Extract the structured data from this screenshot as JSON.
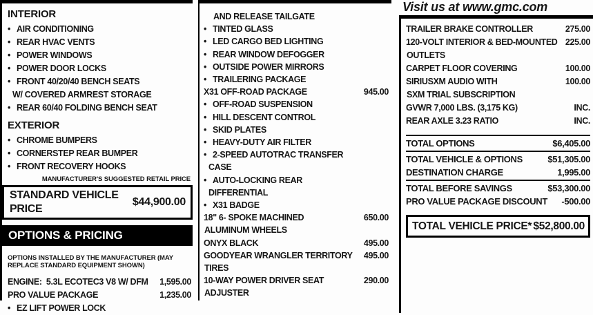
{
  "header": {
    "tagline": "Visit us at www.gmc.com"
  },
  "left": {
    "sections": [
      {
        "title": "INTERIOR",
        "items": [
          {
            "bullet": true,
            "lines": [
              "AIR CONDITIONING"
            ]
          },
          {
            "bullet": true,
            "lines": [
              "REAR HVAC VENTS"
            ]
          },
          {
            "bullet": true,
            "lines": [
              "POWER WINDOWS"
            ]
          },
          {
            "bullet": true,
            "lines": [
              "POWER DOOR LOCKS"
            ]
          },
          {
            "bullet": true,
            "lines": [
              "FRONT 40/20/40 BENCH SEATS",
              "W/ COVERED ARMREST STORAGE"
            ]
          },
          {
            "bullet": true,
            "lines": [
              "REAR 60/40 FOLDING BENCH SEAT"
            ]
          }
        ]
      },
      {
        "title": "EXTERIOR",
        "items": [
          {
            "bullet": true,
            "lines": [
              "CHROME BUMPERS"
            ]
          },
          {
            "bullet": true,
            "lines": [
              "CORNERSTEP REAR BUMPER"
            ]
          },
          {
            "bullet": true,
            "lines": [
              "FRONT RECOVERY HOOKS"
            ]
          }
        ]
      }
    ],
    "msrp_note": "MANUFACTURER'S SUGGESTED RETAIL PRICE",
    "standard_price_label": "STANDARD VEHICLE PRICE",
    "standard_price_value": "$44,900.00",
    "options_banner": "OPTIONS & PRICING",
    "options_note": "OPTIONS INSTALLED BY THE MANUFACTURER (MAY REPLACE STANDARD EQUIPMENT SHOWN)",
    "options": [
      {
        "lines": [
          "ENGINE:  5.3L ECOTEC3 V8 W/ DFM"
        ],
        "price": "1,595.00"
      },
      {
        "lines": [
          "PRO VALUE PACKAGE"
        ],
        "price": "1,235.00"
      },
      {
        "bullet": true,
        "lines": [
          "EZ LIFT POWER LOCK"
        ]
      }
    ]
  },
  "middle": {
    "rows": [
      {
        "indent": true,
        "lines": [
          "AND RELEASE TAILGATE"
        ]
      },
      {
        "bullet": true,
        "lines": [
          "TINTED GLASS"
        ]
      },
      {
        "bullet": true,
        "lines": [
          "LED CARGO BED LIGHTING"
        ]
      },
      {
        "bullet": true,
        "lines": [
          "REAR WINDOW DEFOGGER"
        ]
      },
      {
        "bullet": true,
        "lines": [
          "OUTSIDE POWER MIRRORS"
        ]
      },
      {
        "bullet": true,
        "lines": [
          "TRAILERING PACKAGE"
        ]
      },
      {
        "lines": [
          "X31 OFF-ROAD PACKAGE"
        ],
        "price": "945.00"
      },
      {
        "bullet": true,
        "lines": [
          "OFF-ROAD SUSPENSION"
        ]
      },
      {
        "bullet": true,
        "lines": [
          "HILL DESCENT CONTROL"
        ]
      },
      {
        "bullet": true,
        "lines": [
          "SKID PLATES"
        ]
      },
      {
        "bullet": true,
        "lines": [
          "HEAVY-DUTY AIR FILTER"
        ]
      },
      {
        "bullet": true,
        "lines": [
          "2-SPEED AUTOTRAC TRANSFER",
          "CASE"
        ]
      },
      {
        "bullet": true,
        "lines": [
          "AUTO-LOCKING REAR",
          "DIFFERENTIAL"
        ]
      },
      {
        "bullet": true,
        "lines": [
          "X31 BADGE"
        ]
      },
      {
        "lines": [
          "18\" 6- SPOKE MACHINED",
          "ALUMINUM WHEELS"
        ],
        "price": "650.00"
      },
      {
        "lines": [
          "ONYX BLACK"
        ],
        "price": "495.00"
      },
      {
        "lines": [
          "GOODYEAR WRANGLER TERRITORY",
          "TIRES"
        ],
        "price": "495.00"
      },
      {
        "lines": [
          "10-WAY POWER DRIVER SEAT",
          "ADJUSTER"
        ],
        "price": "290.00"
      }
    ]
  },
  "right": {
    "rows": [
      {
        "lines": [
          "TRAILER BRAKE CONTROLLER"
        ],
        "price": "275.00"
      },
      {
        "lines": [
          "120-VOLT INTERIOR & BED-MOUNTED",
          "OUTLETS"
        ],
        "price": "225.00"
      },
      {
        "lines": [
          "CARPET FLOOR COVERING"
        ],
        "price": "100.00"
      },
      {
        "lines": [
          "SIRIUSXM AUDIO WITH",
          "SXM TRIAL SUBSCRIPTION"
        ],
        "price": "100.00"
      },
      {
        "lines": [
          "GVWR 7,000 LBS. (3,175 KG)"
        ],
        "price": "INC."
      },
      {
        "lines": [
          "REAR AXLE 3.23 RATIO"
        ],
        "price": "INC."
      }
    ],
    "totals": [
      {
        "label": "TOTAL OPTIONS",
        "value": "$6,405.00",
        "rule_above": true,
        "rule_below": true
      },
      {
        "label": "TOTAL VEHICLE & OPTIONS",
        "value": "$51,305.00"
      },
      {
        "label": "DESTINATION CHARGE",
        "value": "1,995.00",
        "rule_below": true
      },
      {
        "label": "TOTAL BEFORE SAVINGS",
        "value": "$53,300.00"
      },
      {
        "label": "PRO VALUE PACKAGE DISCOUNT",
        "value": "-500.00"
      }
    ],
    "total_price_label": "TOTAL VEHICLE PRICE*",
    "total_price_value": "$52,800.00"
  }
}
